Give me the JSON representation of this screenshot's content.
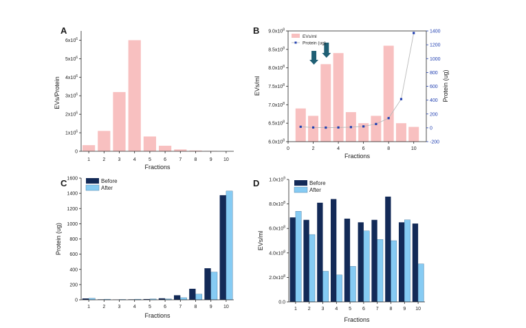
{
  "colors": {
    "pink": "#f8c0c0",
    "navy": "#132a57",
    "light_blue": "#86cbf3",
    "protein_line": "#b9b9b9",
    "protein_marker": "#1f3eb0",
    "arrow": "#1f5f74",
    "protein_axis": "#1f3eb0"
  },
  "chart_data": [
    {
      "panel": "A",
      "type": "bar",
      "categories": [
        "1",
        "2",
        "3",
        "4",
        "5",
        "6",
        "7",
        "8",
        "9",
        "10"
      ],
      "values": [
        0.33,
        1.1,
        3.2,
        6.0,
        0.8,
        0.3,
        0.1,
        0.04,
        0.02,
        0.0
      ],
      "value_scale": "x10^6",
      "xlabel": "Fractions",
      "ylabel": "EVs/Protein",
      "ylim": [
        0,
        6.5
      ],
      "yticks": [
        {
          "v": 0,
          "label": "0"
        },
        {
          "v": 1,
          "label": "1x10",
          "exp": "6"
        },
        {
          "v": 2,
          "label": "2x10",
          "exp": "6"
        },
        {
          "v": 3,
          "label": "3x10",
          "exp": "6"
        },
        {
          "v": 4,
          "label": "4x10",
          "exp": "6"
        },
        {
          "v": 5,
          "label": "5x10",
          "exp": "6"
        },
        {
          "v": 6,
          "label": "6x10",
          "exp": "6"
        }
      ],
      "color_key": "pink"
    },
    {
      "panel": "B",
      "type": "bar+line",
      "x": [
        1,
        2,
        3,
        4,
        5,
        6,
        7,
        8,
        9,
        10
      ],
      "bars": {
        "name": "EVs/ml",
        "values": [
          6.9,
          6.7,
          8.1,
          8.4,
          6.8,
          6.5,
          6.7,
          8.6,
          6.5,
          6.4
        ],
        "value_scale": "x10^8"
      },
      "line": {
        "name": "Protein (ug)",
        "values": [
          15,
          5,
          3,
          5,
          10,
          20,
          55,
          140,
          415,
          1370
        ]
      },
      "xlabel": "Fractions",
      "ylabel": "EVs/ml",
      "y2label": "Protein (ug)",
      "xlim": [
        0,
        11
      ],
      "ylim": [
        6.0,
        9.0
      ],
      "y2lim": [
        -200,
        1400
      ],
      "xticks": [
        "0",
        "2",
        "4",
        "6",
        "8",
        "10"
      ],
      "yticks": [
        {
          "v": 6.0,
          "label": "6.0x10",
          "exp": "8"
        },
        {
          "v": 6.5,
          "label": "6.5x10",
          "exp": "8"
        },
        {
          "v": 7.0,
          "label": "7.0x10",
          "exp": "8"
        },
        {
          "v": 7.5,
          "label": "7.5x10",
          "exp": "8"
        },
        {
          "v": 8.0,
          "label": "8.0x10",
          "exp": "8"
        },
        {
          "v": 8.5,
          "label": "8.5x10",
          "exp": "8"
        },
        {
          "v": 9.0,
          "label": "9.0x10",
          "exp": "8"
        }
      ],
      "y2ticks": [
        "-200",
        "0",
        "200",
        "400",
        "600",
        "800",
        "1000",
        "1200",
        "1400"
      ],
      "arrows_at": [
        2,
        3
      ],
      "legend": [
        "EVs/ml",
        "Protein (ug)"
      ],
      "legend_placement": "top-left"
    },
    {
      "panel": "C",
      "type": "bar",
      "categories": [
        "1",
        "2",
        "3",
        "4",
        "5",
        "6",
        "7",
        "8",
        "9",
        "10"
      ],
      "series": [
        {
          "name": "Before",
          "color_key": "navy",
          "values": [
            18,
            6,
            4,
            6,
            10,
            20,
            60,
            145,
            415,
            1375
          ]
        },
        {
          "name": "After",
          "color_key": "light_blue",
          "values": [
            20,
            8,
            5,
            8,
            12,
            12,
            28,
            75,
            365,
            1430
          ]
        }
      ],
      "xlabel": "Fractions",
      "ylabel": "Protein (ug)",
      "ylim": [
        0,
        1600
      ],
      "yticks": [
        "0",
        "200",
        "400",
        "600",
        "800",
        "1000",
        "1200",
        "1400",
        "1600"
      ],
      "legend_placement": "top-left"
    },
    {
      "panel": "D",
      "type": "bar",
      "categories": [
        "1",
        "2",
        "3",
        "4",
        "5",
        "6",
        "7",
        "8",
        "9",
        "10"
      ],
      "series": [
        {
          "name": "Before",
          "color_key": "navy",
          "values": [
            6.9,
            6.7,
            8.1,
            8.4,
            6.8,
            6.5,
            6.7,
            8.6,
            6.5,
            6.4
          ]
        },
        {
          "name": "After",
          "color_key": "light_blue",
          "values": [
            7.4,
            5.5,
            2.5,
            2.2,
            2.9,
            5.8,
            5.1,
            5.0,
            6.7,
            3.1
          ]
        }
      ],
      "value_scale": "x10^8",
      "xlabel": "Fractions",
      "ylabel": "EVs/ml",
      "ylim": [
        0,
        10
      ],
      "yticks": [
        {
          "v": 0,
          "label": "0.0"
        },
        {
          "v": 2,
          "label": "2.0x10",
          "exp": "8"
        },
        {
          "v": 4,
          "label": "4.0x10",
          "exp": "8"
        },
        {
          "v": 6,
          "label": "6.0x10",
          "exp": "8"
        },
        {
          "v": 8,
          "label": "8.0x10",
          "exp": "8"
        },
        {
          "v": 10,
          "label": "1.0x10",
          "exp": "9"
        }
      ],
      "legend_placement": "top-left"
    }
  ]
}
